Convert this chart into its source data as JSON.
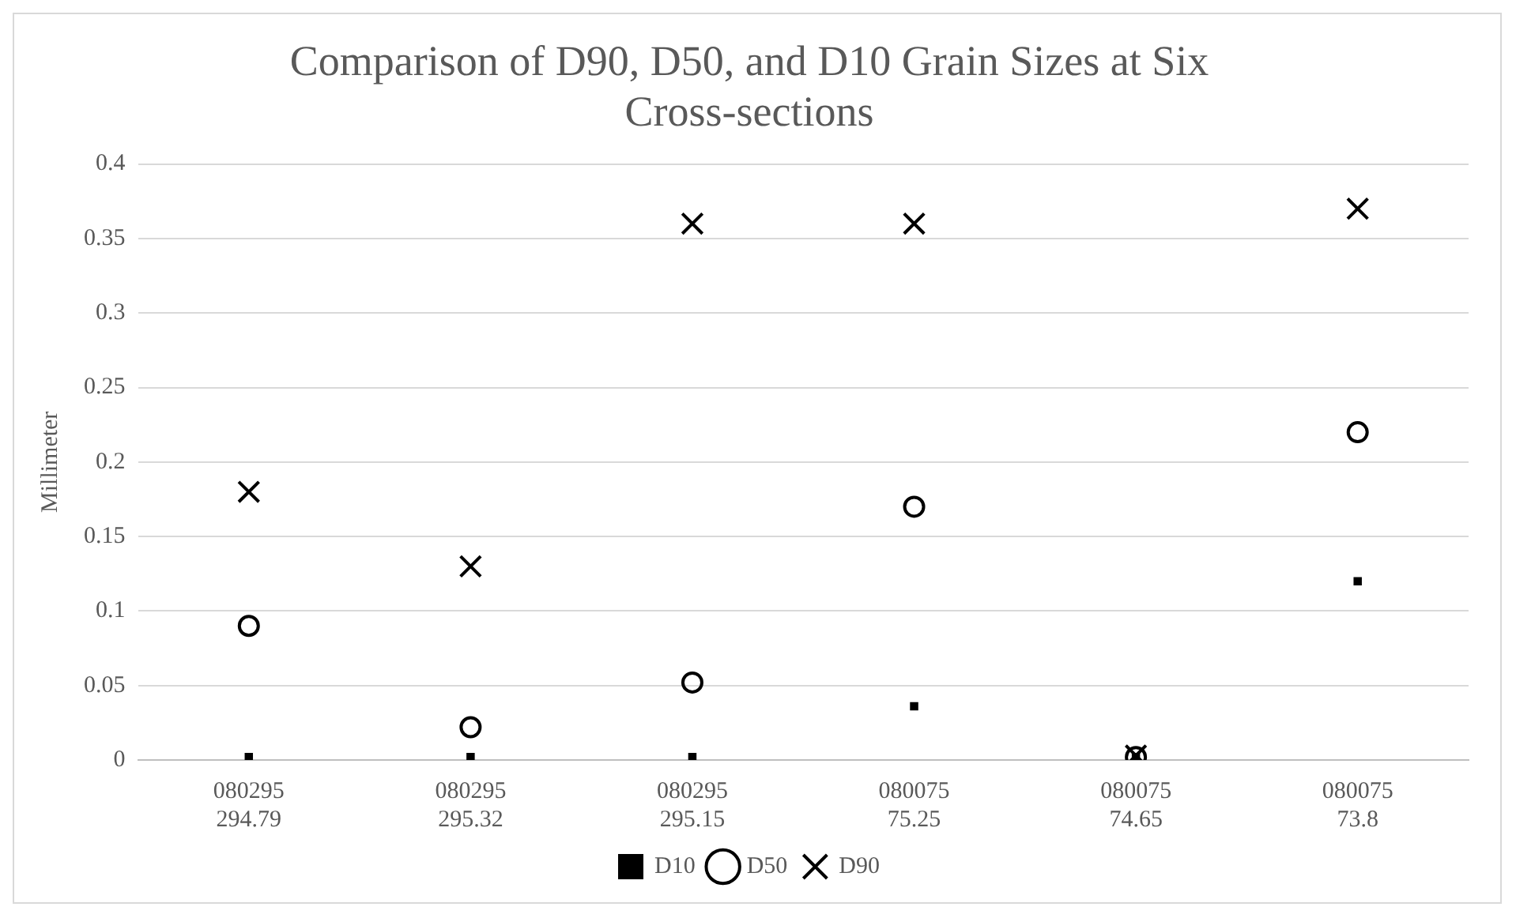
{
  "chart_data": {
    "type": "scatter",
    "title": "Comparison of D90, D50, and D10 Grain Sizes at Six Cross-sections",
    "ylabel": "Millimeter",
    "categories": [
      "080295\n294.79",
      "080295\n295.32",
      "080295\n295.15",
      "080075\n75.25",
      "080075\n74.65",
      "080075\n73.8"
    ],
    "series": [
      {
        "name": "D10",
        "color": "#000000",
        "marker": "square",
        "values": [
          0.002,
          0.002,
          0.002,
          0.036,
          0.002,
          0.12
        ]
      },
      {
        "name": "D50",
        "color": "#000000",
        "marker": "circle",
        "values": [
          0.09,
          0.022,
          0.052,
          0.17,
          0.002,
          0.22
        ]
      },
      {
        "name": "D90",
        "color": "#000000",
        "marker": "cross",
        "values": [
          0.18,
          0.13,
          0.36,
          0.36,
          0.003,
          0.37
        ]
      }
    ],
    "ylim": [
      0,
      0.4
    ],
    "yticks": [
      0,
      0.05,
      0.1,
      0.15,
      0.2,
      0.25,
      0.3,
      0.35,
      0.4
    ],
    "grid": "y",
    "legend": "bottom"
  }
}
